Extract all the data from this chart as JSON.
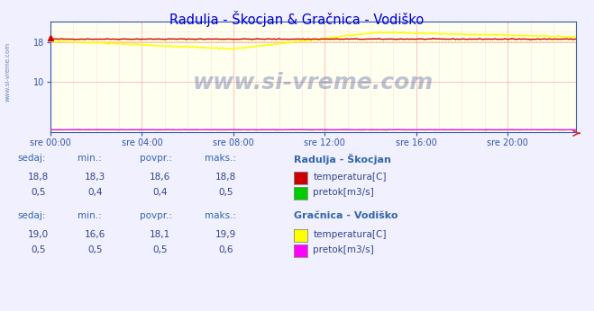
{
  "title": "Radulja - Škocjan & Gračnica - Vodiško",
  "title_color": "#0000cc",
  "bg_color": "#f0f0ff",
  "plot_bg_color": "#fffff0",
  "grid_color_major": "#ffaaaa",
  "grid_color_minor": "#ffdddd",
  "x_labels": [
    "sre 00:00",
    "sre 04:00",
    "sre 08:00",
    "sre 12:00",
    "sre 16:00",
    "sre 20:00"
  ],
  "x_ticks_norm": [
    0.0,
    0.1739,
    0.3478,
    0.5217,
    0.6957,
    0.8696
  ],
  "ylim": [
    0,
    22
  ],
  "n_points": 288,
  "radulja_temp_min": 18.3,
  "radulja_temp_max": 18.8,
  "radulja_temp_avg": 18.6,
  "radulja_temp_current": 18.8,
  "radulja_flow_current": 0.5,
  "radulja_flow_min": 0.4,
  "radulja_flow_avg": 0.4,
  "radulja_flow_max": 0.5,
  "gracnica_temp_min": 16.6,
  "gracnica_temp_max": 19.9,
  "gracnica_temp_avg": 18.1,
  "gracnica_temp_current": 19.0,
  "gracnica_flow_current": 0.5,
  "gracnica_flow_min": 0.5,
  "gracnica_flow_avg": 0.5,
  "gracnica_flow_max": 0.6,
  "radulja_temp_color": "#cc0000",
  "radulja_flow_color": "#00cc00",
  "gracnica_temp_color": "#ffff00",
  "gracnica_flow_color": "#ff00ff",
  "watermark": "www.si-vreme.com",
  "watermark_color": "#1a3a8a",
  "left_label": "www.si-vreme.com",
  "table_header_color": "#3366aa",
  "table_value_color": "#334488",
  "legend_title_color": "#3366aa",
  "axis_color": "#3355aa",
  "spine_color": "#3355aa"
}
